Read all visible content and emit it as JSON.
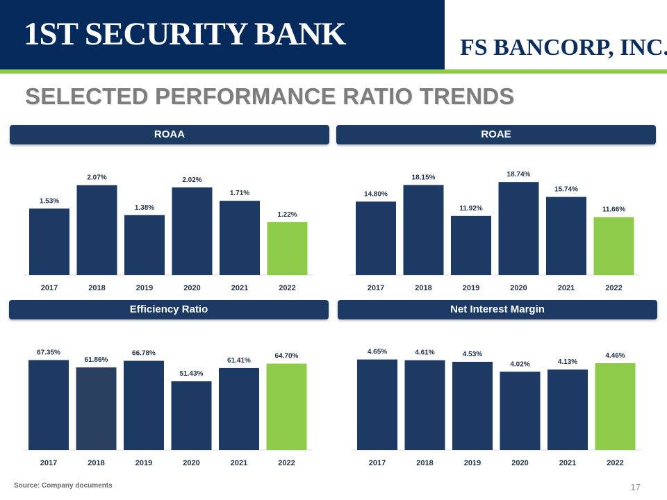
{
  "header": {
    "bank_logo_text": "1ST SECURITY BANK",
    "parent_logo_text": "FS BANCORP, INC.",
    "title": "SELECTED PERFORMANCE RATIO TRENDS"
  },
  "colors": {
    "navy": "#1c3a64",
    "navy_alt": "#2a4060",
    "highlight_green": "#8fcb4a",
    "accent_green": "#8fcb4a"
  },
  "chart_data": [
    {
      "type": "bar",
      "title": "ROAA",
      "categories": [
        "2017",
        "2018",
        "2019",
        "2020",
        "2021",
        "2022"
      ],
      "values": [
        1.53,
        2.07,
        1.38,
        2.02,
        1.71,
        1.22
      ],
      "labels": [
        "1.53%",
        "2.07%",
        "1.38%",
        "2.02%",
        "1.71%",
        "1.22%"
      ],
      "highlight": [
        false,
        false,
        false,
        false,
        false,
        true
      ],
      "ylim": [
        0,
        2.4
      ]
    },
    {
      "type": "bar",
      "title": "ROAE",
      "categories": [
        "2017",
        "2018",
        "2019",
        "2020",
        "2021",
        "2022"
      ],
      "values": [
        14.8,
        18.15,
        11.92,
        18.74,
        15.74,
        11.66
      ],
      "labels": [
        "14.80%",
        "18.15%",
        "11.92%",
        "18.74%",
        "15.74%",
        "11.66%"
      ],
      "highlight": [
        false,
        false,
        false,
        false,
        false,
        true
      ],
      "ylim": [
        0,
        21
      ]
    },
    {
      "type": "bar",
      "title": "Efficiency Ratio",
      "categories": [
        "2017",
        "2018",
        "2019",
        "2020",
        "2021",
        "2022"
      ],
      "values": [
        67.35,
        61.86,
        66.78,
        51.43,
        61.41,
        64.7
      ],
      "labels": [
        "67.35%",
        "61.86%",
        "66.78%",
        "51.43%",
        "61.41%",
        "64.70%"
      ],
      "highlight": [
        false,
        false,
        false,
        false,
        false,
        true
      ],
      "ylim": [
        0,
        78
      ]
    },
    {
      "type": "bar",
      "title": "Net Interest Margin",
      "categories": [
        "2017",
        "2018",
        "2019",
        "2020",
        "2021",
        "2022"
      ],
      "values": [
        4.65,
        4.61,
        4.53,
        4.02,
        4.13,
        4.46
      ],
      "labels": [
        "4.65%",
        "4.61%",
        "4.53%",
        "4.02%",
        "4.13%",
        "4.46%"
      ],
      "highlight": [
        false,
        false,
        false,
        false,
        false,
        true
      ],
      "ylim": [
        0,
        5.35
      ]
    }
  ],
  "footer": {
    "source": "Source: Company documents",
    "page_number": "17"
  }
}
